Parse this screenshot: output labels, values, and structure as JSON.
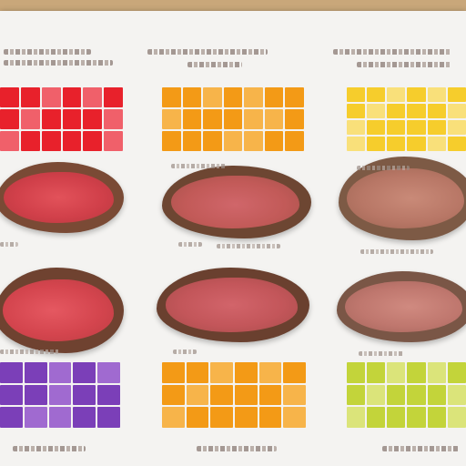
{
  "colors": {
    "background_board": "#c9a77a",
    "sheet": "#f4f3f1",
    "red_chart": "#e8212b",
    "orange_chart": "#f39a16",
    "yellow_chart": "#f6cd2c",
    "purple_chart": "#7b3fb8",
    "lime_chart": "#c3d43a",
    "rare_meat": "#d6444a",
    "medium_meat": "#c96a5a",
    "crust": "#6d4632"
  },
  "panels": [
    {
      "name": "panel-top-left",
      "chart_color": "red"
    },
    {
      "name": "panel-top-middle",
      "chart_color": "orange"
    },
    {
      "name": "panel-top-right",
      "chart_color": "yellow"
    },
    {
      "name": "panel-bottom-left",
      "chart_color": "purple"
    },
    {
      "name": "panel-bottom-middle",
      "chart_color": "orange"
    },
    {
      "name": "panel-bottom-right",
      "chart_color": "lime"
    }
  ]
}
